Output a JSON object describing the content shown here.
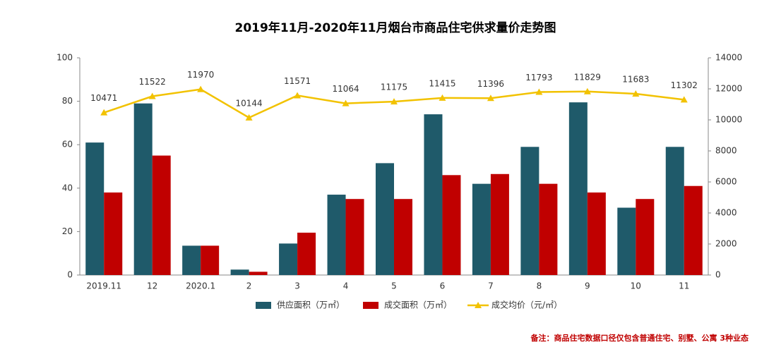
{
  "chart_data": {
    "type": "bar-line",
    "title": "2019年11月-2020年11月烟台市商品住宅供求量价走势图",
    "categories": [
      "2019.11",
      "12",
      "2020.1",
      "2",
      "3",
      "4",
      "5",
      "6",
      "7",
      "8",
      "9",
      "10",
      "11"
    ],
    "series": [
      {
        "name": "供应面积（万㎡）",
        "type": "bar",
        "color": "#1f5a6a",
        "values": [
          61,
          79,
          13.5,
          2.5,
          14.5,
          37,
          51.5,
          74,
          42,
          59,
          79.5,
          31,
          59
        ]
      },
      {
        "name": "成交面积（万㎡）",
        "type": "bar",
        "color": "#c00000",
        "values": [
          38,
          55,
          13.5,
          1.5,
          19.5,
          35,
          35,
          46,
          46.5,
          42,
          38,
          35,
          41
        ]
      },
      {
        "name": "成交均价（元/㎡）",
        "type": "line",
        "axis": "y2",
        "color": "#f2c200",
        "values": [
          10471,
          11522,
          11970,
          10144,
          11571,
          11064,
          11175,
          11415,
          11396,
          11793,
          11829,
          11683,
          11302
        ]
      }
    ],
    "ylim": [
      0,
      100
    ],
    "yticks": [
      0,
      20,
      40,
      60,
      80,
      100
    ],
    "y2lim": [
      0,
      14000
    ],
    "y2ticks": [
      0,
      2000,
      4000,
      6000,
      8000,
      10000,
      12000,
      14000
    ],
    "legend": "bottom",
    "note": "备注：商品住宅数据口径仅包含普通住宅、别墅、公寓 3种业态"
  }
}
